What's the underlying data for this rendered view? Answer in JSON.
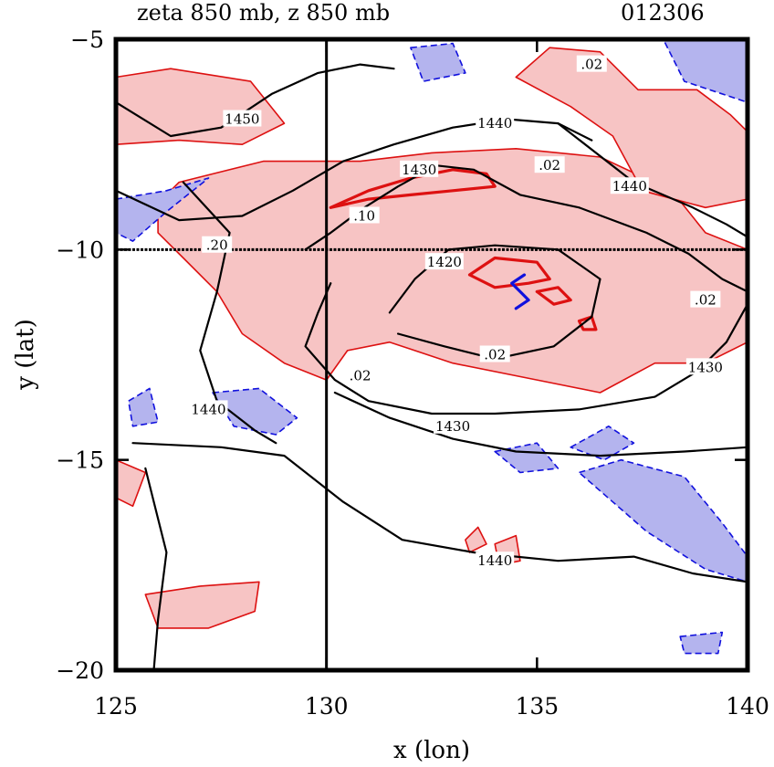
{
  "header": {
    "title": "zeta 850 mb, z 850 mb",
    "date_code": "012306"
  },
  "chart_data": {
    "type": "contour",
    "title": "zeta 850 mb, z 850 mb",
    "date_code": "012306",
    "xlabel": "x (lon)",
    "ylabel": "y (lat)",
    "xlim": [
      125,
      140
    ],
    "ylim": [
      -20,
      -5
    ],
    "xticks": [
      125,
      130,
      135,
      140
    ],
    "yticks": [
      -5,
      -10,
      -15,
      -20
    ],
    "xtick_labels": [
      "125",
      "130",
      "135",
      "140"
    ],
    "ytick_labels": [
      "−5",
      "−10",
      "−15",
      "−20"
    ],
    "reference_lines": {
      "x": 130,
      "y": -10
    },
    "colors": {
      "positive_vorticity": "#dd1111",
      "positive_fill": "#f7c4c4",
      "negative_vorticity": "#1111dd",
      "negative_fill": "#b4b4ee",
      "height_contour": "#000000"
    },
    "height_contours": [
      {
        "level": 1450,
        "label": "1450",
        "label_at": [
          128.0,
          -6.9
        ],
        "points": [
          [
            125,
            -6.5
          ],
          [
            126.3,
            -7.3
          ],
          [
            127.5,
            -7.1
          ],
          [
            128.7,
            -6.3
          ],
          [
            129.8,
            -5.8
          ],
          [
            130.8,
            -5.6
          ],
          [
            131.6,
            -5.7
          ]
        ]
      },
      {
        "level": 1440,
        "label": "1440",
        "label_at": [
          134.0,
          -7.0
        ],
        "points": [
          [
            125,
            -8.6
          ],
          [
            126.5,
            -9.3
          ],
          [
            128.0,
            -9.2
          ],
          [
            129.2,
            -8.6
          ],
          [
            130.4,
            -7.9
          ],
          [
            131.6,
            -7.5
          ],
          [
            133.0,
            -7.1
          ],
          [
            134.3,
            -6.9
          ],
          [
            135.5,
            -7.0
          ],
          [
            136.3,
            -7.4
          ]
        ]
      },
      {
        "level": 1440,
        "label": "1440",
        "label_at": [
          137.2,
          -8.5
        ],
        "points": [
          [
            135.5,
            -7.0
          ],
          [
            137.3,
            -8.4
          ],
          [
            138.7,
            -9.0
          ],
          [
            139.5,
            -9.4
          ],
          [
            140,
            -9.7
          ]
        ]
      },
      {
        "level": 1430,
        "label": "1430",
        "label_at": [
          132.2,
          -8.1
        ],
        "points": [
          [
            129.5,
            -10.0
          ],
          [
            130.1,
            -9.6
          ],
          [
            130.9,
            -9.0
          ],
          [
            131.7,
            -8.5
          ],
          [
            132.6,
            -8.0
          ],
          [
            133.5,
            -8.1
          ],
          [
            134.6,
            -8.7
          ],
          [
            136.0,
            -9.0
          ],
          [
            137.6,
            -9.6
          ],
          [
            138.6,
            -10.1
          ],
          [
            139.4,
            -10.7
          ],
          [
            140,
            -11.0
          ]
        ]
      },
      {
        "level": 1430,
        "label": "1430",
        "label_at": [
          139.0,
          -12.8
        ],
        "points": [
          [
            140,
            -11.3
          ],
          [
            139.5,
            -12.2
          ],
          [
            138.8,
            -12.9
          ],
          [
            137.8,
            -13.5
          ],
          [
            136.0,
            -13.8
          ],
          [
            134.0,
            -13.9
          ],
          [
            132.5,
            -13.9
          ],
          [
            131.0,
            -13.6
          ],
          [
            130.2,
            -13.1
          ],
          [
            129.5,
            -12.3
          ],
          [
            129.8,
            -11.5
          ],
          [
            130.1,
            -10.8
          ]
        ]
      },
      {
        "level": 1430,
        "label": "1430",
        "label_at": [
          133.0,
          -14.2
        ],
        "points": [
          [
            130.2,
            -13.4
          ],
          [
            131.5,
            -14.0
          ],
          [
            133.0,
            -14.5
          ],
          [
            134.5,
            -14.8
          ],
          [
            136.5,
            -14.9
          ],
          [
            138.5,
            -14.8
          ],
          [
            140,
            -14.7
          ]
        ]
      },
      {
        "level": 1420,
        "label": "1420",
        "label_at": [
          132.8,
          -10.3
        ],
        "points": [
          [
            131.5,
            -11.5
          ],
          [
            132.1,
            -10.7
          ],
          [
            132.9,
            -10.0
          ],
          [
            134.0,
            -9.9
          ],
          [
            135.5,
            -10.0
          ],
          [
            136.5,
            -10.7
          ],
          [
            136.3,
            -11.6
          ],
          [
            135.4,
            -12.3
          ],
          [
            134.0,
            -12.6
          ],
          [
            132.8,
            -12.3
          ],
          [
            131.7,
            -12.0
          ]
        ]
      },
      {
        "level": 1440,
        "label": "1440",
        "label_at": [
          127.2,
          -13.8
        ],
        "points": [
          [
            126.6,
            -8.4
          ],
          [
            127.7,
            -9.6
          ],
          [
            127.4,
            -11.0
          ],
          [
            127.0,
            -12.4
          ],
          [
            127.4,
            -13.6
          ],
          [
            128.3,
            -14.3
          ],
          [
            128.8,
            -14.6
          ]
        ]
      },
      {
        "level": 1440,
        "label": "1440",
        "label_at": [
          134.0,
          -17.4
        ],
        "points": [
          [
            125.4,
            -14.6
          ],
          [
            127.5,
            -14.7
          ],
          [
            129.0,
            -14.9
          ],
          [
            130.4,
            -16.0
          ],
          [
            131.8,
            -16.9
          ],
          [
            133.5,
            -17.2
          ],
          [
            135.5,
            -17.4
          ],
          [
            137.3,
            -17.3
          ],
          [
            138.7,
            -17.7
          ],
          [
            140,
            -17.9
          ]
        ]
      },
      {
        "level": 1450,
        "label": "",
        "label_at": null,
        "points": [
          [
            125.7,
            -15.2
          ],
          [
            126.2,
            -17.2
          ],
          [
            126.0,
            -18.8
          ],
          [
            125.9,
            -20
          ]
        ]
      }
    ],
    "vorticity_labels": [
      {
        "text": ".02",
        "at": [
          136.3,
          -5.6
        ]
      },
      {
        "text": ".02",
        "at": [
          135.3,
          -8.0
        ]
      },
      {
        "text": ".10",
        "at": [
          130.9,
          -9.2
        ]
      },
      {
        "text": ".20",
        "at": [
          127.4,
          -9.9
        ]
      },
      {
        "text": ".02",
        "at": [
          139.0,
          -11.2
        ]
      },
      {
        "text": ".02",
        "at": [
          134.0,
          -12.5
        ]
      },
      {
        "text": ".02",
        "at": [
          130.8,
          -13.0
        ]
      }
    ],
    "positive_regions": [
      [
        [
          126.5,
          -8.4
        ],
        [
          128.5,
          -7.9
        ],
        [
          130.8,
          -7.9
        ],
        [
          132.5,
          -7.7
        ],
        [
          134.5,
          -7.6
        ],
        [
          136.5,
          -7.8
        ],
        [
          138.2,
          -8.6
        ],
        [
          139.0,
          -9.6
        ],
        [
          140,
          -10.0
        ],
        [
          140,
          -12.2
        ],
        [
          139.0,
          -12.7
        ],
        [
          137.8,
          -12.7
        ],
        [
          136.5,
          -13.4
        ],
        [
          135.0,
          -13.1
        ],
        [
          133.0,
          -12.7
        ],
        [
          131.5,
          -12.2
        ],
        [
          130.5,
          -12.4
        ],
        [
          130.0,
          -13.1
        ],
        [
          129.0,
          -12.7
        ],
        [
          128.0,
          -12.0
        ],
        [
          127.4,
          -11.0
        ],
        [
          126.6,
          -10.2
        ],
        [
          126.0,
          -9.6
        ],
        [
          126.0,
          -8.9
        ]
      ],
      [
        [
          125,
          -5.9
        ],
        [
          126.3,
          -5.7
        ],
        [
          128.2,
          -6.0
        ],
        [
          129.0,
          -7.0
        ],
        [
          128.0,
          -7.5
        ],
        [
          126.5,
          -7.4
        ],
        [
          125,
          -7.5
        ]
      ],
      [
        [
          134.5,
          -5.9
        ],
        [
          135.3,
          -5.2
        ],
        [
          136.5,
          -5.3
        ],
        [
          137.4,
          -6.2
        ],
        [
          138.8,
          -6.2
        ],
        [
          139.6,
          -6.8
        ],
        [
          140,
          -7.2
        ],
        [
          140,
          -8.8
        ],
        [
          139.0,
          -9.0
        ],
        [
          137.5,
          -8.6
        ],
        [
          136.8,
          -7.3
        ],
        [
          135.8,
          -6.6
        ]
      ],
      [
        [
          125.7,
          -18.2
        ],
        [
          127.0,
          -18.0
        ],
        [
          128.4,
          -17.9
        ],
        [
          128.3,
          -18.6
        ],
        [
          127.2,
          -19.0
        ],
        [
          126.0,
          -19.0
        ]
      ],
      [
        [
          125,
          -15.0
        ],
        [
          125.7,
          -15.3
        ],
        [
          125.4,
          -16.1
        ],
        [
          125.0,
          -15.9
        ]
      ],
      [
        [
          133.3,
          -16.9
        ],
        [
          133.6,
          -16.6
        ],
        [
          133.8,
          -17.0
        ],
        [
          133.4,
          -17.2
        ]
      ],
      [
        [
          134.0,
          -17.0
        ],
        [
          134.5,
          -16.8
        ],
        [
          134.6,
          -17.4
        ],
        [
          134.1,
          -17.5
        ]
      ]
    ],
    "strong_positive_contours": [
      {
        "level": 0.1,
        "points": [
          [
            130.1,
            -9.0
          ],
          [
            131.0,
            -8.6
          ],
          [
            132.0,
            -8.3
          ],
          [
            133.0,
            -8.1
          ],
          [
            133.8,
            -8.2
          ],
          [
            134.0,
            -8.5
          ],
          [
            133.0,
            -8.6
          ],
          [
            132.0,
            -8.7
          ],
          [
            131.0,
            -8.8
          ],
          [
            130.1,
            -9.0
          ]
        ]
      },
      {
        "level": 0.1,
        "points": [
          [
            133.4,
            -10.6
          ],
          [
            134.0,
            -10.2
          ],
          [
            135.0,
            -10.3
          ],
          [
            135.3,
            -10.7
          ],
          [
            134.8,
            -10.8
          ],
          [
            134.0,
            -10.9
          ],
          [
            133.4,
            -10.6
          ]
        ]
      },
      {
        "level": 0.1,
        "points": [
          [
            135.0,
            -11.0
          ],
          [
            135.5,
            -10.9
          ],
          [
            135.8,
            -11.2
          ],
          [
            135.4,
            -11.3
          ],
          [
            135.0,
            -11.0
          ]
        ]
      },
      {
        "level": 0.1,
        "points": [
          [
            136.0,
            -11.7
          ],
          [
            136.3,
            -11.6
          ],
          [
            136.4,
            -11.9
          ],
          [
            136.1,
            -11.9
          ],
          [
            136.0,
            -11.7
          ]
        ]
      }
    ],
    "negative_regions": [
      [
        [
          132.0,
          -5.2
        ],
        [
          133.0,
          -5.1
        ],
        [
          133.3,
          -5.8
        ],
        [
          132.3,
          -6.0
        ]
      ],
      [
        [
          138.0,
          -5.0
        ],
        [
          140,
          -5.0
        ],
        [
          140,
          -6.5
        ],
        [
          138.5,
          -6.0
        ]
      ],
      [
        [
          125,
          -8.8
        ],
        [
          126.2,
          -8.6
        ],
        [
          127.2,
          -8.3
        ],
        [
          126.2,
          -9.1
        ],
        [
          125.4,
          -9.8
        ],
        [
          125,
          -9.6
        ]
      ],
      [
        [
          125.3,
          -13.6
        ],
        [
          125.8,
          -13.3
        ],
        [
          126.0,
          -14.1
        ],
        [
          125.4,
          -14.2
        ]
      ],
      [
        [
          127.3,
          -13.4
        ],
        [
          128.4,
          -13.3
        ],
        [
          129.3,
          -14.0
        ],
        [
          128.8,
          -14.4
        ],
        [
          127.8,
          -14.2
        ]
      ],
      [
        [
          134.0,
          -14.8
        ],
        [
          135.0,
          -14.6
        ],
        [
          135.5,
          -15.2
        ],
        [
          134.6,
          -15.3
        ]
      ],
      [
        [
          135.8,
          -14.7
        ],
        [
          136.7,
          -14.2
        ],
        [
          137.3,
          -14.6
        ],
        [
          136.6,
          -15.0
        ]
      ],
      [
        [
          136.0,
          -15.3
        ],
        [
          137.0,
          -15.0
        ],
        [
          138.5,
          -15.4
        ],
        [
          139.4,
          -16.5
        ],
        [
          140,
          -17.3
        ],
        [
          140,
          -17.9
        ],
        [
          139.0,
          -17.6
        ],
        [
          137.6,
          -16.7
        ],
        [
          136.8,
          -16.0
        ]
      ],
      [
        [
          138.4,
          -19.2
        ],
        [
          139.4,
          -19.1
        ],
        [
          139.3,
          -19.6
        ],
        [
          138.5,
          -19.6
        ]
      ]
    ],
    "strong_negative_contours": [
      {
        "level": -0.1,
        "points": [
          [
            134.7,
            -10.6
          ],
          [
            134.4,
            -10.8
          ],
          [
            134.6,
            -11.0
          ],
          [
            134.8,
            -11.2
          ],
          [
            134.5,
            -11.4
          ]
        ]
      }
    ]
  }
}
